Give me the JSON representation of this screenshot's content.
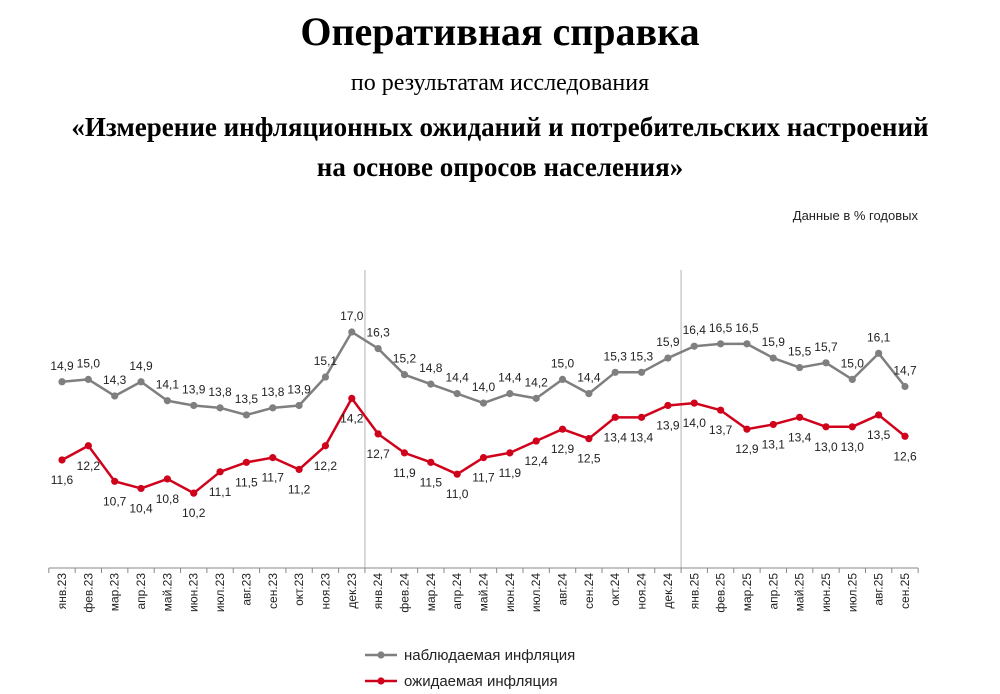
{
  "header": {
    "title": "Оперативная справка",
    "subtitle": "по результатам исследования",
    "study_line1": "«Измерение инфляционных ожиданий и потребительских настроений",
    "study_line2": "на основе опросов населения»",
    "units_note": "Данные в % годовых"
  },
  "chart_data": {
    "type": "line",
    "categories": [
      "янв.23",
      "фев.23",
      "мар.23",
      "апр.23",
      "май.23",
      "июн.23",
      "июл.23",
      "авг.23",
      "сен.23",
      "окт.23",
      "ноя.23",
      "дек.23",
      "янв.24",
      "фев.24",
      "мар.24",
      "апр.24",
      "май.24",
      "июн.24",
      "июл.24",
      "авг.24",
      "сен.24",
      "окт.24",
      "ноя.24",
      "дек.24",
      "янв.25",
      "фев.25",
      "мар.25",
      "апр.25",
      "май.25",
      "июн.25",
      "июл.25",
      "авг.25",
      "сен.25"
    ],
    "series": [
      {
        "name": "наблюдаемая инфляция",
        "color": "#7f7f7f",
        "values": [
          14.9,
          15.0,
          14.3,
          14.9,
          14.1,
          13.9,
          13.8,
          13.5,
          13.8,
          13.9,
          15.1,
          17.0,
          16.3,
          15.2,
          14.8,
          14.4,
          14.0,
          14.4,
          14.2,
          15.0,
          14.4,
          15.3,
          15.3,
          15.9,
          16.4,
          16.5,
          16.5,
          15.9,
          15.5,
          15.7,
          15.0,
          16.1,
          14.7
        ]
      },
      {
        "name": "ожидаемая инфляция",
        "color": "#d0021b",
        "values": [
          11.6,
          12.2,
          10.7,
          10.4,
          10.8,
          10.2,
          11.1,
          11.5,
          11.7,
          11.2,
          12.2,
          14.2,
          12.7,
          11.9,
          11.5,
          11.0,
          11.7,
          11.9,
          12.4,
          12.9,
          12.5,
          13.4,
          13.4,
          13.9,
          14.0,
          13.7,
          12.9,
          13.1,
          13.4,
          13.0,
          13.0,
          13.5,
          12.6
        ]
      }
    ],
    "year_dividers_after": [
      "дек.23",
      "дек.24"
    ],
    "data_labels": true,
    "decimal_separator": ",",
    "grid": false,
    "legend_position": "bottom"
  }
}
